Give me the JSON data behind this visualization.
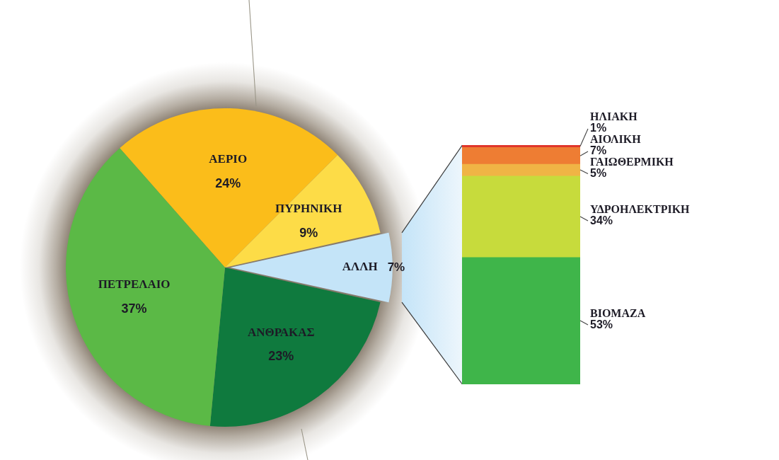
{
  "chart_data": [
    {
      "type": "pie",
      "categories": [
        "ΑΕΡΙΟ",
        "ΠΥΡΗΝΙΚΗ",
        "ΑΛΛΗ",
        "ΑΝΘΡΑΚΑΣ",
        "ΠΕΤΡΕΛΑΙΟ"
      ],
      "values": [
        24,
        9,
        7,
        23,
        37
      ],
      "colors": [
        "#fbbd1a",
        "#fddc47",
        "#c4e4f8",
        "#0f7a3e",
        "#5bb946"
      ],
      "value_labels": [
        "24%",
        "9%",
        "7%",
        "23%",
        "37%"
      ]
    },
    {
      "type": "bar",
      "stacked": true,
      "categories": [
        null
      ],
      "series": [
        {
          "name": "ΒΙΟΜΑΖΑ",
          "color": "#3fb54a",
          "values": [
            53
          ],
          "value_labels": [
            "53%"
          ]
        },
        {
          "name": "ΥΔΡΟΗΛΕΚΤΡΙΚΗ",
          "color": "#c7db3c",
          "values": [
            34
          ],
          "value_labels": [
            "34%"
          ]
        },
        {
          "name": "ΓΑΙΩΘΕΡΜΙΚΗ",
          "color": "#f0b445",
          "values": [
            5
          ],
          "value_labels": [
            "5%"
          ]
        },
        {
          "name": "ΑΙΟΛΙΚΗ",
          "color": "#ee7d33",
          "values": [
            7
          ],
          "value_labels": [
            "7%"
          ]
        },
        {
          "name": "ΗΛΙΑΚΗ",
          "color": "#e0362b",
          "values": [
            1
          ],
          "value_labels": [
            "1%"
          ]
        }
      ]
    }
  ]
}
